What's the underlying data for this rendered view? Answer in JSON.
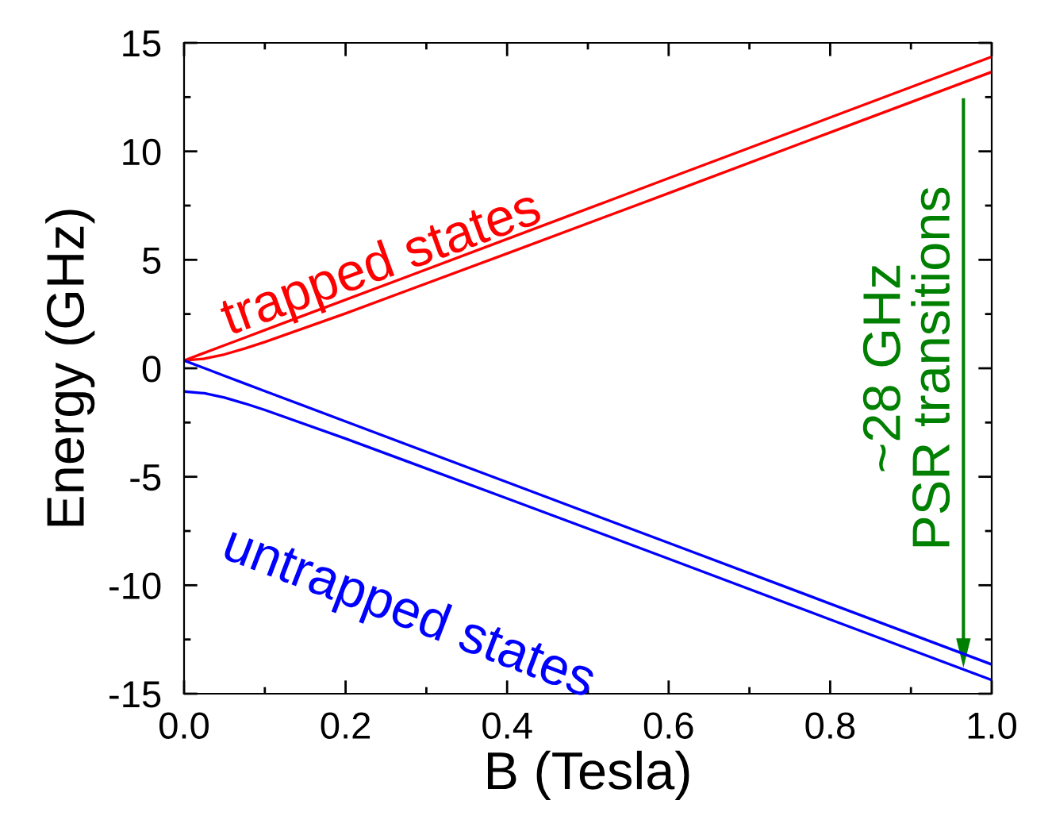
{
  "chart_data": {
    "type": "line",
    "xlabel": "B (Tesla)",
    "ylabel": "Energy (GHz)",
    "x": [
      0,
      0.025,
      0.05,
      0.075,
      0.1,
      0.2,
      0.4,
      0.6,
      0.8,
      1.0
    ],
    "series": [
      {
        "color": "#ff0000",
        "values": [
          0.36,
          0.71,
          1.06,
          1.41,
          1.76,
          3.16,
          5.96,
          8.76,
          11.56,
          14.36
        ]
      },
      {
        "color": "#ff0000",
        "values": [
          0.36,
          0.44,
          0.64,
          0.91,
          1.21,
          2.53,
          5.29,
          8.07,
          10.87,
          13.66
        ]
      },
      {
        "color": "#0000ff",
        "values": [
          0.36,
          0.01,
          -0.35,
          -0.7,
          -1.05,
          -2.45,
          -5.25,
          -8.05,
          -10.85,
          -13.65
        ]
      },
      {
        "color": "#0000ff",
        "values": [
          -1.07,
          -1.15,
          -1.35,
          -1.62,
          -1.92,
          -3.24,
          -6.0,
          -8.78,
          -11.58,
          -14.37
        ]
      }
    ],
    "xlim": [
      0,
      1.0
    ],
    "ylim": [
      -15,
      15
    ],
    "xticks": [
      {
        "value": 0,
        "label": "0.0"
      },
      {
        "value": 0.1,
        "label": null
      },
      {
        "value": 0.2,
        "label": "0.2"
      },
      {
        "value": 0.3,
        "label": null
      },
      {
        "value": 0.4,
        "label": "0.4"
      },
      {
        "value": 0.5,
        "label": null
      },
      {
        "value": 0.6,
        "label": "0.6"
      },
      {
        "value": 0.7,
        "label": null
      },
      {
        "value": 0.8,
        "label": "0.8"
      },
      {
        "value": 0.9,
        "label": null
      },
      {
        "value": 1.0,
        "label": "1.0"
      }
    ],
    "yticks": [
      -15,
      {
        "value": -12.5,
        "label": null
      },
      -10,
      {
        "value": -7.5,
        "label": null
      },
      -5,
      {
        "value": -2.5,
        "label": null
      },
      0,
      {
        "value": 2.5,
        "label": null
      },
      5,
      {
        "value": 7.5,
        "label": null
      },
      10,
      {
        "value": 12.5,
        "label": null
      },
      15
    ],
    "annotations": [
      "trapped states",
      "untrapped states",
      "~28 GHz\nPSR transitions"
    ],
    "grid": false,
    "legend": false
  }
}
